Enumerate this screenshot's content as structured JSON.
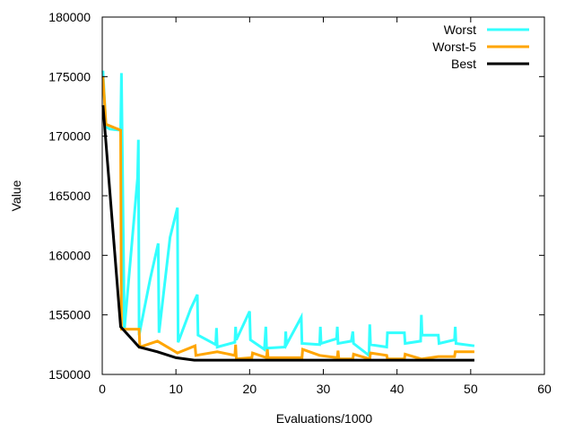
{
  "chart_data": {
    "type": "line",
    "title": "",
    "xlabel": "Evaluations/1000",
    "ylabel": "Value",
    "xlim": [
      0,
      60
    ],
    "ylim": [
      150000,
      180000
    ],
    "xticks": [
      0,
      10,
      20,
      30,
      40,
      50,
      60
    ],
    "yticks": [
      150000,
      155000,
      160000,
      165000,
      170000,
      175000,
      180000
    ],
    "grid": false,
    "legend_position": "top-right",
    "series": [
      {
        "name": "Worst",
        "color": "#33ffff",
        "points": [
          [
            0.1,
            175500
          ],
          [
            0.5,
            170800
          ],
          [
            1.0,
            170600
          ],
          [
            2.5,
            170500
          ],
          [
            2.6,
            175300
          ],
          [
            3.0,
            153800
          ],
          [
            4.8,
            166500
          ],
          [
            4.9,
            169700
          ],
          [
            5.0,
            153300
          ],
          [
            6.5,
            158000
          ],
          [
            7.6,
            161000
          ],
          [
            7.7,
            153500
          ],
          [
            9.2,
            161500
          ],
          [
            10.2,
            164000
          ],
          [
            10.3,
            152700
          ],
          [
            12.0,
            155500
          ],
          [
            12.9,
            156700
          ],
          [
            13.0,
            153300
          ],
          [
            15.4,
            152500
          ],
          [
            15.5,
            153900
          ],
          [
            15.6,
            152300
          ],
          [
            18.0,
            152700
          ],
          [
            18.1,
            154000
          ],
          [
            18.2,
            152900
          ],
          [
            20.0,
            155300
          ],
          [
            20.1,
            152900
          ],
          [
            22.0,
            152100
          ],
          [
            22.2,
            154000
          ],
          [
            22.3,
            152200
          ],
          [
            24.8,
            152300
          ],
          [
            24.9,
            153600
          ],
          [
            25.0,
            152500
          ],
          [
            27.0,
            154800
          ],
          [
            27.1,
            152600
          ],
          [
            29.5,
            152500
          ],
          [
            29.6,
            154000
          ],
          [
            29.7,
            152600
          ],
          [
            31.8,
            153000
          ],
          [
            31.9,
            154000
          ],
          [
            32.0,
            152600
          ],
          [
            33.8,
            152800
          ],
          [
            34.0,
            153600
          ],
          [
            34.1,
            152600
          ],
          [
            36.2,
            151600
          ],
          [
            36.3,
            154200
          ],
          [
            36.4,
            152500
          ],
          [
            38.6,
            152300
          ],
          [
            38.7,
            153500
          ],
          [
            41.0,
            153500
          ],
          [
            41.1,
            152600
          ],
          [
            43.2,
            152800
          ],
          [
            43.3,
            155000
          ],
          [
            43.4,
            153300
          ],
          [
            45.6,
            153300
          ],
          [
            45.7,
            152600
          ],
          [
            47.8,
            152900
          ],
          [
            47.9,
            154000
          ],
          [
            48.0,
            152600
          ],
          [
            50.5,
            152400
          ]
        ]
      },
      {
        "name": "Worst-5",
        "color": "#ffa500",
        "points": [
          [
            0.1,
            175000
          ],
          [
            0.5,
            171000
          ],
          [
            2.5,
            170500
          ],
          [
            2.6,
            153800
          ],
          [
            5.0,
            153800
          ],
          [
            5.1,
            152300
          ],
          [
            7.5,
            152800
          ],
          [
            10.2,
            151800
          ],
          [
            12.6,
            152400
          ],
          [
            12.7,
            151600
          ],
          [
            15.6,
            151900
          ],
          [
            18.0,
            151600
          ],
          [
            18.1,
            152500
          ],
          [
            18.2,
            151300
          ],
          [
            20.3,
            151400
          ],
          [
            20.4,
            151800
          ],
          [
            22.3,
            151400
          ],
          [
            22.4,
            152100
          ],
          [
            22.5,
            151400
          ],
          [
            27.1,
            151400
          ],
          [
            27.2,
            152100
          ],
          [
            29.5,
            151600
          ],
          [
            31.9,
            151400
          ],
          [
            32.0,
            152000
          ],
          [
            32.1,
            151300
          ],
          [
            34.0,
            151300
          ],
          [
            34.1,
            151700
          ],
          [
            36.3,
            151300
          ],
          [
            36.4,
            151800
          ],
          [
            38.6,
            151600
          ],
          [
            38.7,
            151300
          ],
          [
            41.0,
            151300
          ],
          [
            41.1,
            151700
          ],
          [
            43.3,
            151300
          ],
          [
            45.6,
            151500
          ],
          [
            47.8,
            151500
          ],
          [
            47.9,
            151900
          ],
          [
            50.5,
            151900
          ]
        ]
      },
      {
        "name": "Best",
        "color": "#000000",
        "points": [
          [
            0.1,
            172600
          ],
          [
            2.5,
            154000
          ],
          [
            5.0,
            152300
          ],
          [
            7.5,
            151900
          ],
          [
            10.0,
            151400
          ],
          [
            12.5,
            151200
          ],
          [
            15.0,
            151200
          ],
          [
            20.0,
            151200
          ],
          [
            30.0,
            151200
          ],
          [
            40.0,
            151200
          ],
          [
            50.5,
            151200
          ]
        ]
      }
    ]
  }
}
